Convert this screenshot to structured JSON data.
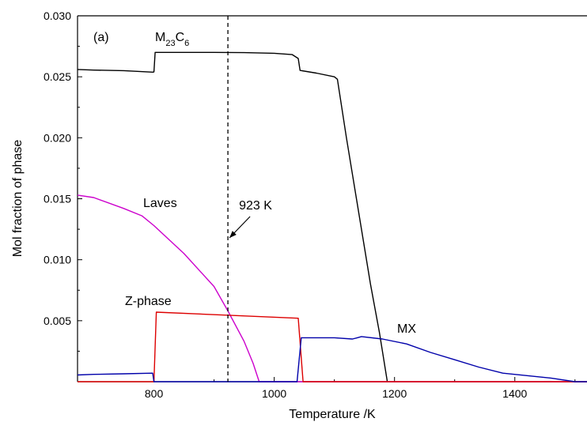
{
  "chart_data": {
    "type": "line",
    "panel_label": "(a)",
    "xlabel": "Temperature /K",
    "ylabel": "Mol fraction of phase",
    "xlim": [
      673,
      1520
    ],
    "ylim": [
      0,
      0.03
    ],
    "x_ticks": [
      {
        "value": 800,
        "label": "800"
      },
      {
        "value": 1000,
        "label": "1000"
      },
      {
        "value": 1200,
        "label": "1200"
      },
      {
        "value": 1400,
        "label": "1400"
      }
    ],
    "y_ticks": [
      {
        "value": 0.005,
        "label": "0.005"
      },
      {
        "value": 0.01,
        "label": "0.010"
      },
      {
        "value": 0.015,
        "label": "0.015"
      },
      {
        "value": 0.02,
        "label": "0.020"
      },
      {
        "value": 0.025,
        "label": "0.025"
      },
      {
        "value": 0.03,
        "label": "0.030"
      }
    ],
    "grid": false,
    "legend": "none",
    "reference_line": {
      "x": 923,
      "style": "dashed",
      "label": "923 K"
    },
    "series": [
      {
        "name": "",
        "label": {
          "main": "M",
          "sub1": "23",
          "mid": "C",
          "sub2": "6"
        },
        "color": "#000000",
        "points": [
          [
            673,
            0.0256
          ],
          [
            700,
            0.02555
          ],
          [
            750,
            0.0255
          ],
          [
            798,
            0.02538
          ],
          [
            800,
            0.0254
          ],
          [
            802,
            0.027
          ],
          [
            850,
            0.027
          ],
          [
            900,
            0.027
          ],
          [
            950,
            0.02698
          ],
          [
            1000,
            0.02693
          ],
          [
            1030,
            0.02682
          ],
          [
            1040,
            0.0265
          ],
          [
            1043,
            0.02552
          ],
          [
            1070,
            0.0253
          ],
          [
            1100,
            0.025
          ],
          [
            1105,
            0.0248
          ],
          [
            1120,
            0.02
          ],
          [
            1140,
            0.014
          ],
          [
            1160,
            0.008
          ],
          [
            1175,
            0.004
          ],
          [
            1188,
            0.0
          ]
        ]
      },
      {
        "name": "",
        "label": {
          "main": "Laves"
        },
        "color": "#cc00cc",
        "points": [
          [
            673,
            0.0153
          ],
          [
            700,
            0.0151
          ],
          [
            750,
            0.0142
          ],
          [
            780,
            0.0136
          ],
          [
            800,
            0.0128
          ],
          [
            850,
            0.0105
          ],
          [
            900,
            0.0078
          ],
          [
            923,
            0.0058
          ],
          [
            950,
            0.0033
          ],
          [
            965,
            0.0015
          ],
          [
            975,
            0.0
          ],
          [
            1520,
            0.0
          ]
        ]
      },
      {
        "name": "",
        "label": {
          "main": "Z-phase"
        },
        "color": "#dd0000",
        "points": [
          [
            673,
            0.0
          ],
          [
            800,
            0.0
          ],
          [
            804,
            0.0057
          ],
          [
            1040,
            0.0052
          ],
          [
            1048,
            0.0
          ],
          [
            1520,
            0.0
          ]
        ]
      },
      {
        "name": "",
        "label": {
          "main": "MX"
        },
        "color": "#0000aa",
        "points": [
          [
            673,
            0.00055
          ],
          [
            700,
            0.0006
          ],
          [
            750,
            0.00065
          ],
          [
            798,
            0.0007
          ],
          [
            800,
            0.0
          ],
          [
            1038,
            0.0
          ],
          [
            1045,
            0.0036
          ],
          [
            1100,
            0.0036
          ],
          [
            1130,
            0.0035
          ],
          [
            1138,
            0.0036
          ],
          [
            1145,
            0.0037
          ],
          [
            1180,
            0.0035
          ],
          [
            1220,
            0.0031
          ],
          [
            1260,
            0.0024
          ],
          [
            1300,
            0.0018
          ],
          [
            1340,
            0.0012
          ],
          [
            1380,
            0.0007
          ],
          [
            1420,
            0.0005
          ],
          [
            1460,
            0.0003
          ],
          [
            1500,
            0.0
          ],
          [
            1520,
            0.0
          ]
        ]
      }
    ]
  }
}
